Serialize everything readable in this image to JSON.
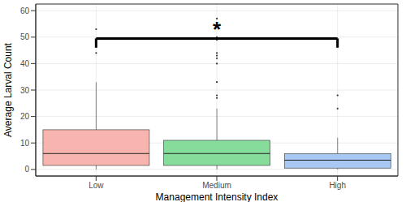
{
  "chart_data": {
    "type": "box",
    "x_label": "Management Intensity Index",
    "y_label": "Average Larval Count",
    "categories": [
      "Low",
      "Medium",
      "High"
    ],
    "colors": [
      "#f8b4ae",
      "#86dc9a",
      "#a8c7f2"
    ],
    "boxes": [
      {
        "min": 0,
        "q1": 1.5,
        "median": 6,
        "q3": 15,
        "max": 33,
        "outliers": [
          44,
          53
        ]
      },
      {
        "min": 0,
        "q1": 1.5,
        "median": 6,
        "q3": 11,
        "max": 23,
        "outliers": [
          27,
          28,
          33,
          40,
          42,
          43,
          44,
          49,
          50,
          57
        ]
      },
      {
        "min": 0,
        "q1": 0.5,
        "median": 3.5,
        "q3": 6,
        "max": 12,
        "outliers": [
          23,
          28
        ]
      }
    ],
    "ylim": [
      -2.5,
      62.5
    ],
    "yticks": [
      0,
      10,
      20,
      30,
      40,
      50,
      60
    ],
    "grid": true,
    "annotations": [
      {
        "text": "*",
        "from": "Low",
        "to": "High",
        "y": 49.5,
        "y_end": 46
      }
    ]
  }
}
